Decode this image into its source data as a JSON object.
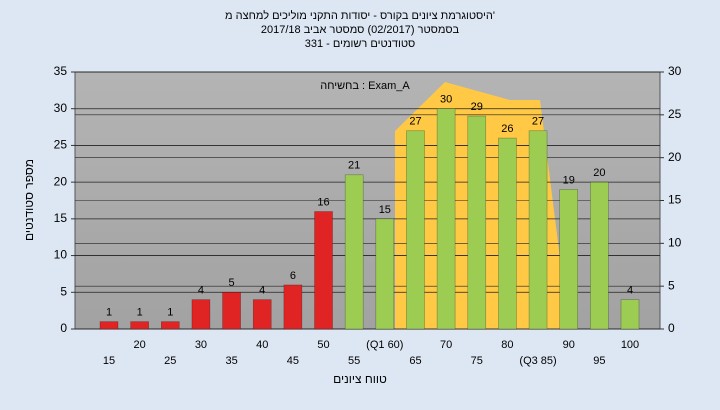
{
  "chart_data": {
    "type": "bar",
    "title": "היסטוגרמת ציונים בקורס - יסודות התקני מוליכים למחצה מ'",
    "subtitle": "בסמסטר  (02/2017)  סמסטר אביב 2017/18",
    "subtitle2": "סטודנטים רשומים - 331",
    "annotation": "בחשיחה : Exam_A",
    "ylabel": "מספר סטודנטים",
    "xlabel": "טווח ציונים",
    "categories": [
      "15",
      "20",
      "25",
      "30",
      "35",
      "40",
      "45",
      "50",
      "55",
      "(Q1 60)",
      "65",
      "70",
      "75",
      "80",
      "(Q3 85)",
      "90",
      "95",
      "100"
    ],
    "values": [
      1,
      1,
      1,
      4,
      5,
      4,
      6,
      16,
      21,
      15,
      27,
      30,
      29,
      26,
      27,
      19,
      20,
      4
    ],
    "colors": [
      "#e02424",
      "#e02424",
      "#e02424",
      "#e02424",
      "#e02424",
      "#e02424",
      "#e02424",
      "#e02424",
      "#9ccc52",
      "#9ccc52",
      "#9ccc52",
      "#9ccc52",
      "#9ccc52",
      "#9ccc52",
      "#9ccc52",
      "#9ccc52",
      "#9ccc52",
      "#9ccc52"
    ],
    "ylim": [
      0,
      35
    ],
    "yticks": [
      0,
      5,
      10,
      15,
      20,
      25,
      30,
      35
    ],
    "y2lim": [
      0,
      30
    ],
    "y2ticks": [
      0,
      5,
      10,
      15,
      20,
      25,
      30
    ],
    "grid": true
  }
}
